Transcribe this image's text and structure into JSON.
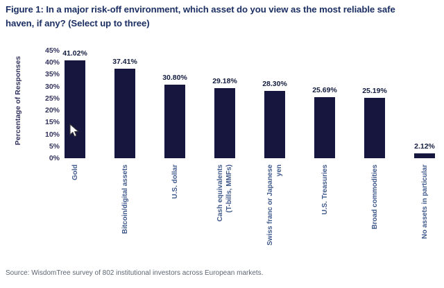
{
  "title": "Figure 1: In a major risk-off environment, which asset do you view as the most reliable safe\nhaven, if any? (Select up to three)",
  "source": "Source: WisdomTree survey of 802 institutional investors across European markets.",
  "colors": {
    "title_text": "#1b2f63",
    "bar": "#16163e",
    "value_label": "#131c3f",
    "axis_text": "#32325e",
    "category_text": "#405a8c",
    "source_text": "#5d6671",
    "background": "#ffffff"
  },
  "chart_data": {
    "type": "bar",
    "title": "Figure 1: In a major risk-off environment, which asset do you view as the most reliable safe haven, if any? (Select up to three)",
    "categories": [
      "Gold",
      "Bitcoin/digital assets",
      "U.S. dollar",
      "Cash equivalents\n(T-bills, MMFs)",
      "Swiss franc or Japanese yen",
      "U.S. Treasuries",
      "Broad commodities",
      "No assets in particular"
    ],
    "values": [
      41.02,
      37.41,
      30.8,
      29.18,
      28.3,
      25.69,
      25.19,
      2.12
    ],
    "value_labels": [
      "41.02%",
      "37.41%",
      "30.80%",
      "29.18%",
      "28.30%",
      "25.69%",
      "25.19%",
      "2.12%"
    ],
    "xlabel": "",
    "ylabel": "Percentage of Responses",
    "ylim": [
      0,
      45
    ],
    "ytick_step": 5,
    "yticks": [
      "0%",
      "5%",
      "10%",
      "15%",
      "20%",
      "25%",
      "30%",
      "35%",
      "40%",
      "45%"
    ],
    "grid": false,
    "legend": "none",
    "bar_color": "#16163e"
  }
}
